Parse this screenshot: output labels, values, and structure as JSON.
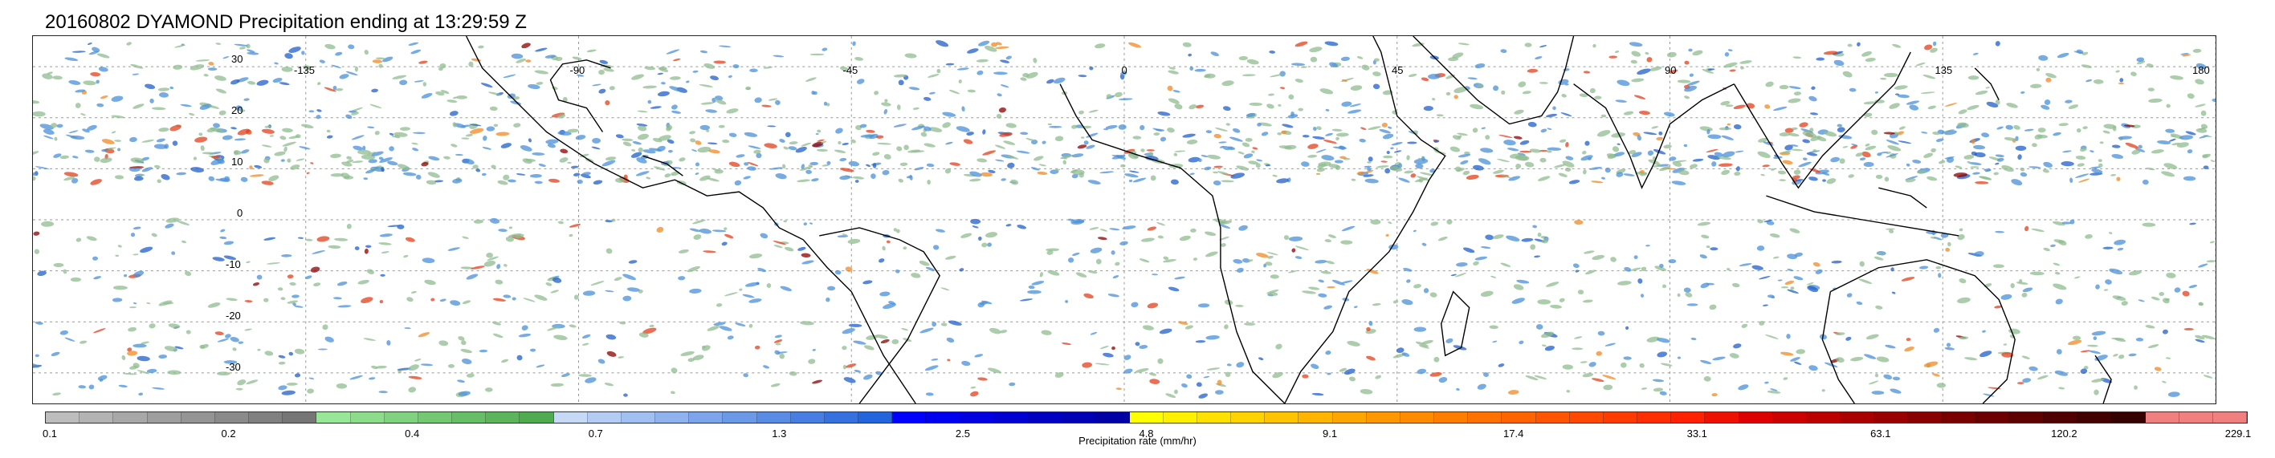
{
  "title": "20160802 DYAMOND Precipitation ending at 13:29:59 Z",
  "map": {
    "lat_labels": [
      "30",
      "20",
      "10",
      "0",
      "-10",
      "-20",
      "-30"
    ],
    "lat_values": [
      30,
      20,
      10,
      0,
      -10,
      -20,
      -30
    ],
    "lon_labels": [
      "-135",
      "-90",
      "-45",
      "0",
      "45",
      "90",
      "135",
      "180"
    ],
    "lon_values": [
      -135,
      -90,
      -45,
      0,
      45,
      90,
      135,
      180
    ],
    "lon_range": [
      -180,
      180
    ],
    "lat_range": [
      -36,
      36
    ],
    "gridlines": true,
    "coastline_color": "#000000",
    "rain_colors": [
      "#8fbc8f",
      "#4a90d9",
      "#1f5fc8",
      "#e2401c",
      "#f08a24",
      "#8b0000"
    ]
  },
  "colorbar": {
    "label": "Precipitation rate (mm/hr)",
    "tick_labels": [
      "0.1",
      "0.2",
      "0.4",
      "0.7",
      "1.3",
      "2.5",
      "4.8",
      "9.1",
      "17.4",
      "33.1",
      "63.1",
      "120.2",
      "229.1"
    ],
    "colors": [
      "#bdbdbd",
      "#b3b3b3",
      "#a8a8a8",
      "#9e9e9e",
      "#949494",
      "#8a8a8a",
      "#808080",
      "#767676",
      "#98e698",
      "#8cdc8c",
      "#80d280",
      "#74c874",
      "#68be68",
      "#5cb45c",
      "#50aa50",
      "#c6d9f7",
      "#b4ccf4",
      "#a2bff1",
      "#90b2ee",
      "#7ea5eb",
      "#6c98e8",
      "#5a8be5",
      "#487ee2",
      "#3671df",
      "#2464dc",
      "#0000ff",
      "#0000f0",
      "#0000e1",
      "#0000d2",
      "#0000c3",
      "#0000b4",
      "#0000a5",
      "#ffff00",
      "#fff000",
      "#ffe100",
      "#ffd200",
      "#ffc300",
      "#ffb400",
      "#ffa500",
      "#ff9800",
      "#ff8b00",
      "#ff7e00",
      "#ff7100",
      "#ff6400",
      "#ff5500",
      "#ff4800",
      "#ff3b00",
      "#ff2e00",
      "#ff2100",
      "#ee1100",
      "#dd0000",
      "#cc0000",
      "#bb0000",
      "#aa0000",
      "#990000",
      "#880000",
      "#7a0000",
      "#6c0000",
      "#5e0000",
      "#500000",
      "#420000",
      "#340000",
      "#f08080",
      "#f08080",
      "#f08080"
    ]
  }
}
